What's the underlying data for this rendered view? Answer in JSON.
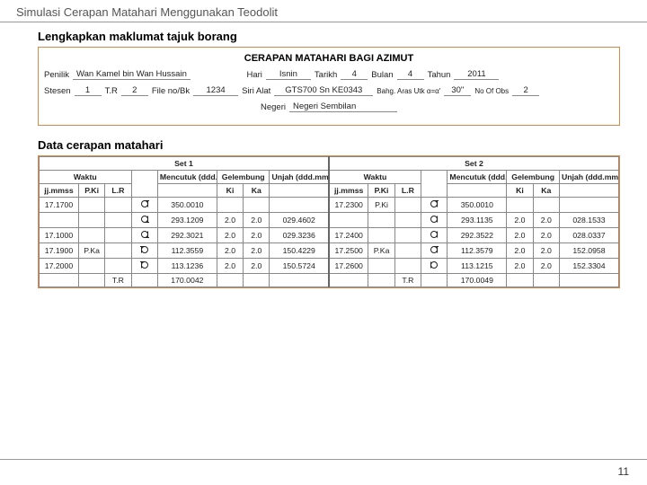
{
  "header": "Simulasi Cerapan Matahari Menggunakan Teodolit",
  "sec1_title": "Lengkapkan maklumat tajuk borang",
  "form": {
    "title": "CERAPAN MATAHARI BAGI AZIMUT",
    "penilik_lbl": "Penilik",
    "penilik": "Wan Kamel bin Wan Hussain",
    "hari_lbl": "Hari",
    "hari": "Isnin",
    "tarikh_lbl": "Tarikh",
    "tarikh": "4",
    "bulan_lbl": "Bulan",
    "bulan": "4",
    "tahun_lbl": "Tahun",
    "tahun": "2011",
    "stesen_lbl": "Stesen",
    "stesen": "1",
    "tr_lbl": "T.R",
    "tr": "2",
    "file_lbl": "File no/Bk",
    "file": "1234",
    "siri_lbl": "Siri Alat",
    "siri": "GTS700  Sn KE0343",
    "bahg_lbl": "Bahg. Aras Utk α=α'",
    "bahg": "30\"",
    "noobs_lbl": "No Of Obs",
    "noobs": "2",
    "negeri_lbl": "Negeri",
    "negeri": "Negeri Sembilan"
  },
  "sec2_title": "Data cerapan matahari",
  "tbl": {
    "set1": "Set 1",
    "set2": "Set 2",
    "waktu": "Waktu",
    "menc": "Mencutuk (ddd.mmss)",
    "gel": "Gelembung",
    "unjah": "Unjah (ddd.mmss)",
    "jjmmss": "jj.mmss",
    "pki": "P.Ki",
    "lr": "L.R",
    "ki": "Ki",
    "ka": "Ka",
    "rows1": [
      {
        "w": "17.1700",
        "p": "",
        "lr": "",
        "sym": "up-right",
        "m": "350.0010",
        "ki": "",
        "ka": "",
        "u": ""
      },
      {
        "w": "",
        "p": "",
        "lr": "",
        "sym": "down-right",
        "m": "293.1209",
        "ki": "2.0",
        "ka": "2.0",
        "u": "029.4602"
      },
      {
        "w": "17.1000",
        "p": "",
        "lr": "",
        "sym": "down-right",
        "m": "292.3021",
        "ki": "2.0",
        "ka": "2.0",
        "u": "029.3236"
      },
      {
        "w": "17.1900",
        "p": "P.Ka",
        "lr": "",
        "sym": "up-left",
        "m": "112.3559",
        "ki": "2.0",
        "ka": "2.0",
        "u": "150.4229"
      },
      {
        "w": "17.2000",
        "p": "",
        "lr": "",
        "sym": "up-left",
        "m": "113.1236",
        "ki": "2.0",
        "ka": "2.0",
        "u": "150.5724"
      },
      {
        "w": "",
        "p": "",
        "lr": "T.R",
        "sym": "",
        "m": "170.0042",
        "ki": "",
        "ka": "",
        "u": ""
      }
    ],
    "rows2": [
      {
        "w": "17.2300",
        "p": "P.Ki",
        "lr": "",
        "sym": "up-right",
        "m": "350.0010",
        "ki": "",
        "ka": "",
        "u": ""
      },
      {
        "w": "",
        "p": "",
        "lr": "",
        "sym": "open-right",
        "m": "293.1135",
        "ki": "2.0",
        "ka": "2.0",
        "u": "028.1533"
      },
      {
        "w": "17.2400",
        "p": "",
        "lr": "",
        "sym": "open-right",
        "m": "292.3522",
        "ki": "2.0",
        "ka": "2.0",
        "u": "028.0337"
      },
      {
        "w": "17.2500",
        "p": "P.Ka",
        "lr": "",
        "sym": "up-right",
        "m": "112.3579",
        "ki": "2.0",
        "ka": "2.0",
        "u": "152.0958"
      },
      {
        "w": "17.2600",
        "p": "",
        "lr": "",
        "sym": "open-left",
        "m": "113.1215",
        "ki": "2.0",
        "ka": "2.0",
        "u": "152.3304"
      },
      {
        "w": "",
        "p": "",
        "lr": "T.R",
        "sym": "",
        "m": "170.0049",
        "ki": "",
        "ka": "",
        "u": ""
      }
    ]
  },
  "page_num": "11",
  "colors": {
    "border": "#d88a4a",
    "grid": "#888888",
    "text": "#222222"
  }
}
